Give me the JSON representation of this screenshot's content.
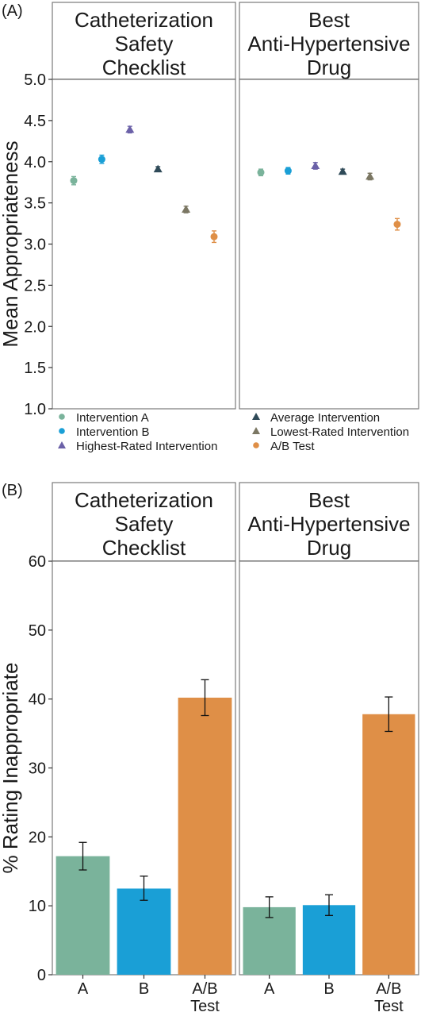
{
  "chart_data": [
    {
      "panel_tag": "(A)",
      "type": "scatter",
      "ylabel": "Mean Appropriateness",
      "ylim": [
        1.0,
        5.0
      ],
      "yticks": [
        "1.0",
        "1.5",
        "2.0",
        "2.5",
        "3.0",
        "3.5",
        "4.0",
        "4.5",
        "5.0"
      ],
      "grid": false,
      "legend_position": "bottom",
      "facets": [
        {
          "title": [
            "Catheterization",
            "Safety",
            "Checklist"
          ]
        },
        {
          "title": [
            "Best",
            "Anti-Hypertensive",
            "Drug"
          ]
        }
      ],
      "series": [
        {
          "name": "Intervention A",
          "color": "#7ab39b",
          "shape": "circle",
          "values": [
            3.77,
            3.87
          ],
          "err": [
            0.05,
            0.04
          ]
        },
        {
          "name": "Intervention B",
          "color": "#1a9fd6",
          "shape": "circle",
          "values": [
            4.03,
            3.89
          ],
          "err": [
            0.05,
            0.04
          ]
        },
        {
          "name": "Highest-Rated Intervention",
          "color": "#6b61a8",
          "shape": "triangle",
          "values": [
            4.39,
            3.95
          ],
          "err": [
            0.04,
            0.04
          ]
        },
        {
          "name": "Average Intervention",
          "color": "#2f4a58",
          "shape": "triangle",
          "values": [
            3.91,
            3.88
          ],
          "err": [
            0.03,
            0.03
          ]
        },
        {
          "name": "Lowest-Rated Intervention",
          "color": "#7b7763",
          "shape": "triangle",
          "values": [
            3.42,
            3.82
          ],
          "err": [
            0.04,
            0.04
          ]
        },
        {
          "name": "A/B Test",
          "color": "#df8f47",
          "shape": "circle",
          "values": [
            3.09,
            3.24
          ],
          "err": [
            0.07,
            0.07
          ]
        }
      ]
    },
    {
      "panel_tag": "(B)",
      "type": "bar",
      "ylabel": "% Rating Inappropriate",
      "ylim": [
        0,
        60
      ],
      "yticks": [
        "0",
        "10",
        "20",
        "30",
        "40",
        "50",
        "60"
      ],
      "grid": false,
      "categories": [
        [
          "A"
        ],
        [
          "B"
        ],
        [
          "A/B",
          "Test"
        ]
      ],
      "colors": [
        "#7ab39b",
        "#1a9fd6",
        "#df8f47"
      ],
      "facets": [
        {
          "title": [
            "Catheterization",
            "Safety",
            "Checklist"
          ],
          "values": [
            17.2,
            12.5,
            40.2
          ],
          "err_low": [
            15.2,
            10.8,
            37.6
          ],
          "err_high": [
            19.2,
            14.3,
            42.8
          ]
        },
        {
          "title": [
            "Best",
            "Anti-Hypertensive",
            "Drug"
          ],
          "values": [
            9.8,
            10.1,
            37.8
          ],
          "err_low": [
            8.3,
            8.6,
            35.3
          ],
          "err_high": [
            11.3,
            11.6,
            40.3
          ]
        }
      ]
    }
  ]
}
